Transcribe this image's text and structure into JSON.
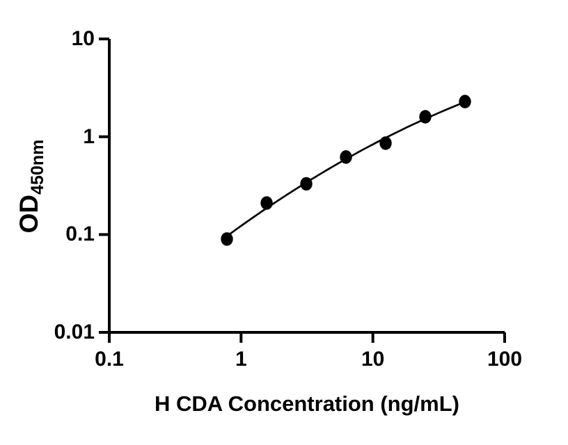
{
  "figure": {
    "background": "#ffffff",
    "foreground": "#000000"
  },
  "chart_data": {
    "type": "scatter",
    "title": "",
    "xlabel": "H CDA Concentration (ng/mL)",
    "ylabel": "OD",
    "ylabel_subscript": "450nm",
    "x_scale": "log10",
    "y_scale": "log10",
    "xlim": [
      0.1,
      100
    ],
    "ylim": [
      0.01,
      10
    ],
    "x_ticks": [
      "0.1",
      "1",
      "10",
      "100"
    ],
    "y_ticks": [
      "10",
      "1",
      "0.1",
      "0.01"
    ],
    "grid": false,
    "legend": false,
    "series": [
      {
        "marker": "filled-circle",
        "marker_color": "#000000",
        "line_color": "#000000",
        "x": [
          0.781,
          1.563,
          3.125,
          6.25,
          12.5,
          25,
          50
        ],
        "y": [
          0.09,
          0.21,
          0.33,
          0.62,
          0.86,
          1.6,
          2.29
        ]
      }
    ]
  }
}
